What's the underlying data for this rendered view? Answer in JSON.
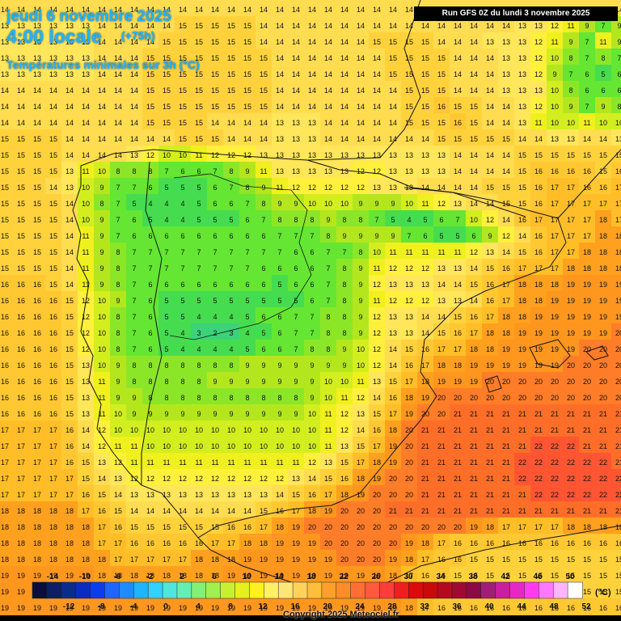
{
  "header": {
    "date": "jeudi 6 novembre 2025",
    "time": "4:00 locale",
    "forecast_hour": "(+75h)",
    "subtitle": "Températures minimales sur 3h (°C)",
    "run": "Run GFS 0Z du lundi 3 novembre 2025"
  },
  "footer": {
    "copyright": "Copyright 2025 Meteociel.fr",
    "unit": "(°C)"
  },
  "legend": {
    "colors": [
      "#0a0f3c",
      "#0c1f64",
      "#0a2c8c",
      "#0a2cc0",
      "#0a3cf0",
      "#1e64ff",
      "#1e8cff",
      "#1eb4ff",
      "#32d2ff",
      "#50e6dc",
      "#64f0b4",
      "#82f078",
      "#a0f050",
      "#c8f032",
      "#e6f01e",
      "#fff01e",
      "#fff064",
      "#ffe678",
      "#ffd25a",
      "#ffbe3c",
      "#ffa028",
      "#ff8c28",
      "#ff6e32",
      "#ff5a3c",
      "#ff3c3c",
      "#f01e1e",
      "#dc0a0a",
      "#c80a0a",
      "#b40a1e",
      "#a00a32",
      "#8c0a46",
      "#a01e78",
      "#c81ea0",
      "#e628c8",
      "#ff3cf0",
      "#ff78ff",
      "#ffb4ff",
      "#ffffff"
    ],
    "top_labels": [
      "-14",
      "-10",
      "-6",
      "-2",
      "2",
      "6",
      "10",
      "14",
      "18",
      "22",
      "26",
      "30",
      "34",
      "38",
      "42",
      "46",
      "50"
    ],
    "bottom_labels": [
      "-12",
      "-8",
      "-4",
      "0",
      "4",
      "8",
      "12",
      "16",
      "20",
      "24",
      "28",
      "32",
      "36",
      "40",
      "44",
      "48",
      "52"
    ]
  },
  "rows": [
    "14 14 14 14 14 14 14 14 14 14 14 14 14 14 14 14 14 14 14 14 14 14 14 14 14 14 14 14 14 14 14 14 14 14 14 14 14 14 14",
    "13 13 13 13 13 13 14 14 14 14 14 15 15 15 15 15 14 14 14 14 14 14 14 14 14 14 14 14 14 14 14 14 13 13 12 11 9 7 9",
    "13 13 13 13 13 13 14 14 14 14 15 15 15 15 15 15 14 14 14 14 14 14 14 15 15 15 15 14 14 14 13 13 13 12 11 9 7 11 9",
    "13 13 13 13 13 13 14 14 14 15 15 15 15 15 15 15 15 14 14 14 14 14 14 14 15 15 15 15 14 14 14 13 13 12 10 8 7 8 7",
    "13 13 13 13 13 13 14 14 14 15 15 15 15 15 15 15 15 14 14 14 14 14 14 14 15 15 15 15 14 14 14 13 13 12 9 7 6 5 6",
    "14 14 14 14 14 14 14 14 14 15 15 15 15 15 15 15 15 14 14 14 14 14 14 14 14 15 15 15 14 14 14 13 13 13 10 8 6 6 6",
    "14 14 14 14 14 14 14 14 14 15 15 15 15 15 15 15 15 14 14 14 14 14 14 14 14 15 15 16 15 15 14 14 13 12 10 9 7 9 8",
    "14 14 14 14 14 14 14 14 14 15 15 15 15 14 14 14 14 13 13 13 14 14 14 14 14 15 15 15 16 15 14 14 13 11 10 10 11 10 10",
    "15 15 15 15 14 14 14 14 14 14 14 15 15 15 14 14 14 13 13 13 14 14 14 14 14 14 14 15 15 15 15 15 14 14 13 13 14 14 13",
    "15 15 15 15 14 14 14 14 13 12 10 10 11 12 12 12 13 13 13 13 13 13 13 13 13 13 13 13 14 14 14 14 15 15 15 15 15 15 15",
    "15 15 15 15 13 11 10 8 8 8 7 6 6 7 8 9 11 13 13 13 13 13 12 12 13 13 13 13 14 14 14 14 15 16 16 16 16 15 16",
    "15 15 15 14 13 10 9 7 7 6 5 5 5 6 7 8 9 11 12 12 12 12 12 13 13 13 14 14 14 14 15 15 15 16 17 17 16 16 17",
    "15 15 15 15 14 10 8 7 5 4 4 4 5 6 6 7 8 9 9 10 10 10 9 9 9 10 11 12 13 14 14 15 15 16 17 17 17 17 17",
    "15 15 15 15 14 10 9 7 6 5 4 4 5 5 5 6 7 8 8 8 9 8 8 7 5 4 5 6 7 10 12 14 16 17 17 17 17 18 17",
    "15 15 15 15 14 11 9 7 6 6 6 6 6 6 6 6 6 7 7 7 8 9 9 9 9 7 6 5 5 6 9 12 14 16 17 17 17 18 18",
    "15 15 15 15 14 11 9 8 7 7 7 7 7 7 7 7 7 7 6 6 7 7 8 10 11 11 11 11 11 12 13 14 15 16 17 17 18 18 18",
    "15 15 15 15 14 11 9 8 7 7 7 7 7 7 7 7 6 6 6 6 7 8 9 11 12 12 12 13 13 14 15 16 17 17 17 18 18 18 18",
    "16 16 16 15 14 11 9 8 7 6 6 6 6 6 6 6 6 5 6 6 7 8 9 12 13 13 13 14 14 15 16 17 18 18 18 19 19 19 19",
    "16 16 16 16 15 12 10 9 7 6 5 5 5 5 5 5 5 5 5 6 7 8 9 11 12 12 12 13 13 14 16 17 18 18 19 19 19 19 19",
    "16 16 16 16 15 12 10 8 7 6 5 5 4 4 4 5 6 6 7 7 8 8 9 12 13 13 14 14 15 16 17 18 18 19 19 19 19 19 19",
    "16 16 16 16 15 12 10 8 7 6 5 4 3 2 3 4 5 6 7 7 8 8 9 12 13 13 14 15 16 17 18 18 19 19 19 19 19 19 20",
    "16 16 16 16 15 12 10 8 7 6 5 4 4 4 4 5 6 6 7 8 8 9 10 12 14 15 16 17 17 18 18 19 19 19 19 19 20 20 20",
    "16 16 16 16 15 13 10 9 8 8 8 8 8 8 8 9 9 9 9 9 9 9 10 12 14 16 17 18 18 19 19 19 19 19 19 20 20 20 20",
    "16 16 16 16 15 13 11 9 8 8 8 8 8 9 9 9 9 9 9 9 10 10 11 13 15 17 18 19 19 19 20 20 20 20 20 20 20 20 20",
    "16 16 16 16 15 13 11 9 9 8 8 8 8 8 8 8 8 8 8 9 10 11 12 14 16 18 19 20 20 20 20 20 20 20 20 20 20 20 20",
    "16 16 16 16 15 13 11 10 9 9 9 9 9 9 9 9 9 9 9 10 11 12 13 15 17 19 20 20 21 21 21 21 21 21 21 21 21 21 21",
    "17 17 17 17 16 14 12 10 10 10 10 10 10 10 10 10 10 10 10 10 11 12 14 16 18 20 21 21 21 21 21 21 21 21 21 21 21 21 21",
    "17 17 17 17 16 14 12 11 11 10 10 10 10 10 10 10 10 10 10 10 11 13 15 17 19 20 21 21 21 21 21 21 21 22 22 22 21 21 21",
    "17 17 17 17 16 15 13 12 11 11 11 11 11 11 11 11 11 11 11 12 13 15 17 18 19 20 21 21 21 21 21 21 22 22 22 22 22 22 21",
    "17 17 17 17 17 15 14 13 12 12 12 12 12 12 12 12 12 12 13 14 15 16 18 19 20 20 21 21 21 21 21 21 22 22 22 22 22 22 22",
    "17 17 17 17 17 16 15 14 13 13 13 13 13 13 13 13 13 14 15 16 17 18 19 20 20 20 21 21 21 21 21 21 21 22 22 22 22 22 22",
    "18 18 18 18 18 17 16 15 14 14 14 14 14 14 14 14 15 16 17 18 19 20 20 20 21 21 21 21 21 21 21 21 21 21 21 21 21 21 21",
    "18 18 18 18 18 18 17 16 15 15 15 15 15 15 16 16 17 18 19 20 20 20 20 20 20 20 20 20 20 19 18 17 17 17 17 18 18 18 18",
    "18 18 18 18 18 18 17 17 16 16 16 16 16 17 17 18 18 19 19 19 20 20 20 20 20 19 18 17 16 16 16 16 16 16 16 16 16 16 16",
    "18 18 18 18 18 18 18 17 17 17 17 17 18 18 18 19 19 19 19 19 19 20 20 20 19 18 17 16 16 15 15 15 15 15 15 15 15 15 15",
    "19 19 19 19 19 19 18 18 18 18 18 18 18 18 19 19 19 19 19 19 19 19 19 19 18 17 16 16 15 15 15 15 15 15 15 15 15 15 15",
    "19 19 19 19 19 19 19 19 19 19 19 19 19 19 19 19 19 19 19 19 19 19 19 19 18 17 16 16 15 15 15 15 15 15 15 15 15 15 15",
    "19 19 19 19 19 19 19 19 19 19 19 19 19 19 19 19 19 19 19 19 19 19 19 19 19 18 17 16 16 16 16 16 16 16 16 16 16 16 16"
  ]
}
